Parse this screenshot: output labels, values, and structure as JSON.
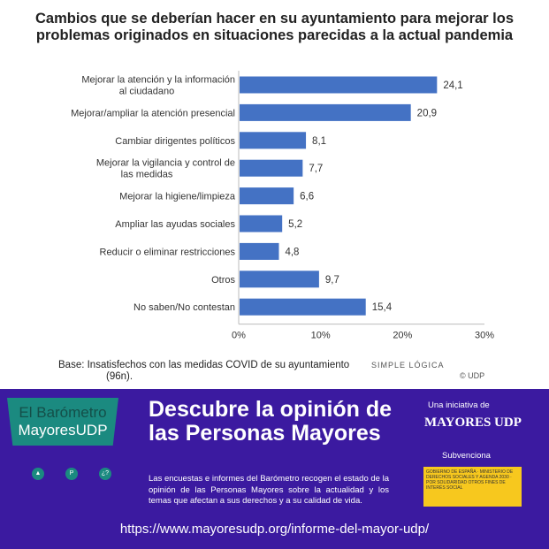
{
  "chart_data": {
    "type": "bar",
    "orientation": "horizontal",
    "title": "Cambios que se deberían hacer en su ayuntamiento para mejorar los problemas originados en situaciones parecidas a la actual pandemia",
    "categories": [
      "Mejorar la atención y la información al ciudadano",
      "Mejorar/ampliar la atención presencial",
      "Cambiar dirigentes políticos",
      "Mejorar la vigilancia y control de las medidas",
      "Mejorar la higiene/limpieza",
      "Ampliar las ayudas sociales",
      "Reducir o eliminar restricciones",
      "Otros",
      "No saben/No contestan"
    ],
    "values": [
      24.1,
      20.9,
      8.1,
      7.7,
      6.6,
      5.2,
      4.8,
      9.7,
      15.4
    ],
    "data_labels": [
      "24,1",
      "20,9",
      "8,1",
      "7,7",
      "6,6",
      "5,2",
      "4,8",
      "9,7",
      "15,4"
    ],
    "xlim": [
      0,
      30
    ],
    "xticks": [
      "0%",
      "10%",
      "20%",
      "30%"
    ],
    "grid": false,
    "color": "#4472c4"
  },
  "footer": {
    "base_line1": "Base: Insatisfechos con las medidas COVID de su ayuntamiento",
    "base_line2": "(96n).",
    "logo": "SIMPLE LÓGICA",
    "copyright": "© UDP"
  },
  "banner": {
    "bubble_line1": "El Barómetro",
    "bubble_line2": "MayoresUDP",
    "headline": "Descubre la opinión de las Personas Mayores",
    "description": "Las encuestas e informes del Barómetro recogen el estado de la opinión de las Personas Mayores sobre la actualidad y los temas que afectan a sus derechos y a su calidad de vida.",
    "url": "https://www.mayoresudp.org/informe-del-mayor-udp/",
    "initiative": "Una iniciativa de",
    "org_logo": "MAYORES UDP",
    "subsidy": "Subvenciona",
    "gov_logo": "GOBIERNO DE ESPAÑA · MINISTERIO DE DERECHOS SOCIALES Y AGENDA 2030 · POR SOLIDARIDAD OTROS FINES DE INTERÉS SOCIAL",
    "icons": [
      "person-icon",
      "parking-icon",
      "question-icon"
    ],
    "color": "#3b1aa0"
  }
}
